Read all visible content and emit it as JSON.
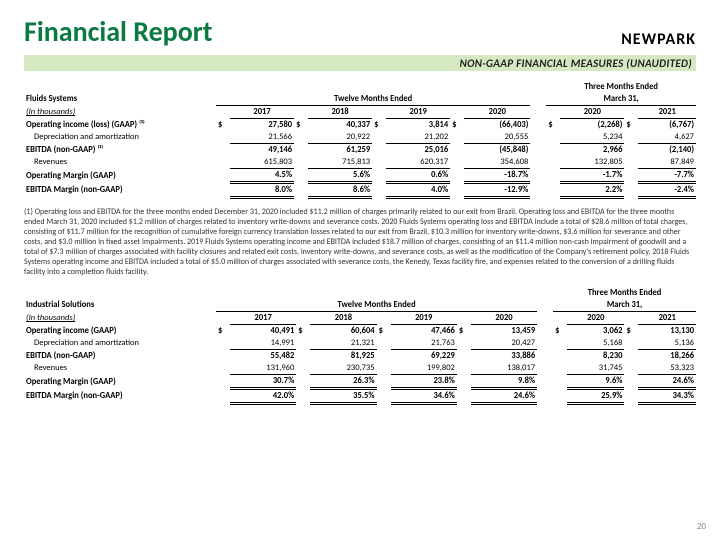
{
  "header": {
    "title": "Financial Report",
    "logo": "NEWPARK",
    "subtitle": "NON-GAAP FINANCIAL MEASURES (UNAUDITED)"
  },
  "groups": {
    "twelve": "Twelve Months Ended",
    "three": "Three Months Ended",
    "march": "March 31,"
  },
  "years": {
    "y17": "2017",
    "y18": "2018",
    "y19": "2019",
    "y20": "2020",
    "q20": "2020",
    "q21": "2021"
  },
  "t1": {
    "section": "Fluids Systems",
    "unit": "(In thousands)",
    "rows": {
      "oi": {
        "lbl": "Operating income (loss) (GAAP) ⁽¹⁾",
        "bold": true,
        "cur": true,
        "v": [
          "27,580",
          "40,337",
          "3,814",
          "(66,403)",
          "(2,268)",
          "(6,767)"
        ]
      },
      "da": {
        "lbl": "Depreciation and amortization",
        "ub": true,
        "v": [
          "21,566",
          "20,922",
          "21,202",
          "20,555",
          "5,234",
          "4,627"
        ]
      },
      "eb": {
        "lbl": "EBITDA (non-GAAP) ⁽¹⁾",
        "bold": true,
        "v": [
          "49,146",
          "61,259",
          "25,016",
          "(45,848)",
          "2,966",
          "(2,140)"
        ]
      },
      "rev": {
        "lbl": "Revenues",
        "ub": true,
        "v": [
          "615,803",
          "715,813",
          "620,317",
          "354,608",
          "132,805",
          "87,849"
        ]
      },
      "om": {
        "lbl": "Operating Margin (GAAP)",
        "bold": true,
        "db": true,
        "v": [
          "4.5%",
          "5.6%",
          "0.6%",
          "-18.7%",
          "-1.7%",
          "-7.7%"
        ]
      },
      "em": {
        "lbl": "EBITDA Margin (non-GAAP)",
        "bold": true,
        "db": true,
        "v": [
          "8.0%",
          "8.6%",
          "4.0%",
          "-12.9%",
          "2.2%",
          "-2.4%"
        ]
      }
    }
  },
  "footnote": "(1) Operating loss and EBITDA for the three months ended December 31, 2020 included $11.2 million of charges primarily related to our exit from Brazil. Operating loss and EBITDA for the three months ended March 31, 2020 included $1.2 million of charges related to inventory write-downs and severance costs. 2020 Fluids Systems operating loss and EBITDA include a total of $28.6 million of total charges, consisting of $11.7 million for the recognition of cumulative foreign currency translation losses related to our exit from Brazil, $10.3 million for inventory write-downs, $3.6 million for severance and other costs, and $3.0 million in fixed asset impairments. 2019 Fluids Systems operating income and EBITDA included $18.7 million of charges, consisting of an $11.4 million non-cash impairment of goodwill and a total of $7.3 million of charges associated with facility closures and related exit costs, inventory write-downs, and severance costs, as well as the modification of the Company's retirement policy. 2018 Fluids Systems operating income and EBITDA included a total of $5.0 million of charges associated with severance costs, the Kenedy, Texas facility fire, and expenses related to the conversion of a drilling fluids facility into a completion fluids facility.",
  "t2": {
    "section": "Industrial Solutions",
    "unit": "(In thousands)",
    "rows": {
      "oi": {
        "lbl": "Operating income (GAAP)",
        "bold": true,
        "cur": true,
        "v": [
          "40,491",
          "60,604",
          "47,466",
          "13,459",
          "3,062",
          "13,130"
        ]
      },
      "da": {
        "lbl": "Depreciation and amortization",
        "ub": true,
        "v": [
          "14,991",
          "21,321",
          "21,763",
          "20,427",
          "5,168",
          "5,136"
        ]
      },
      "eb": {
        "lbl": "EBITDA (non-GAAP)",
        "bold": true,
        "v": [
          "55,482",
          "81,925",
          "69,229",
          "33,886",
          "8,230",
          "18,266"
        ]
      },
      "rev": {
        "lbl": "Revenues",
        "ub": true,
        "v": [
          "131,960",
          "230,735",
          "199,802",
          "138,017",
          "31,745",
          "53,323"
        ]
      },
      "om": {
        "lbl": "Operating Margin (GAAP)",
        "bold": true,
        "db": true,
        "v": [
          "30.7%",
          "26.3%",
          "23.8%",
          "9.8%",
          "9.6%",
          "24.6%"
        ]
      },
      "em": {
        "lbl": "EBITDA Margin (non-GAAP)",
        "bold": true,
        "db": true,
        "v": [
          "42.0%",
          "35.5%",
          "34.6%",
          "24.6%",
          "25.9%",
          "34.3%"
        ]
      }
    }
  },
  "pageNo": "20"
}
